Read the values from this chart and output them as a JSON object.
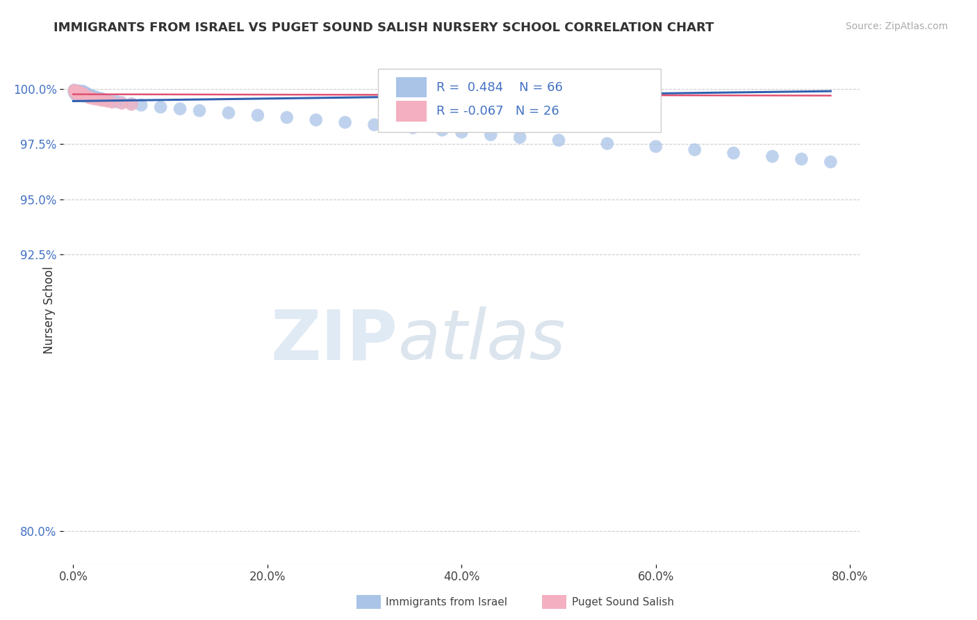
{
  "title": "IMMIGRANTS FROM ISRAEL VS PUGET SOUND SALISH NURSERY SCHOOL CORRELATION CHART",
  "source_text": "Source: ZipAtlas.com",
  "ylabel": "Nursery School",
  "x_tick_labels": [
    "0.0%",
    "20.0%",
    "40.0%",
    "60.0%",
    "80.0%"
  ],
  "x_tick_positions": [
    0.0,
    0.2,
    0.4,
    0.6,
    0.8
  ],
  "y_tick_labels": [
    "100.0%",
    "97.5%",
    "95.0%",
    "92.5%",
    "80.0%"
  ],
  "y_tick_positions": [
    1.0,
    0.975,
    0.95,
    0.925,
    0.8
  ],
  "ylim": [
    0.785,
    1.015
  ],
  "xlim": [
    -0.01,
    0.81
  ],
  "legend_label1": "Immigrants from Israel",
  "legend_label2": "Puget Sound Salish",
  "r1": 0.484,
  "n1": 66,
  "r2": -0.067,
  "n2": 26,
  "color1": "#aac4e8",
  "color2": "#f4b0c0",
  "line_color1": "#3060b0",
  "line_color2": "#e05070",
  "background_color": "#ffffff",
  "blue_dots_x": [
    0.001,
    0.001,
    0.002,
    0.002,
    0.003,
    0.003,
    0.003,
    0.004,
    0.004,
    0.005,
    0.005,
    0.005,
    0.006,
    0.006,
    0.007,
    0.007,
    0.008,
    0.008,
    0.009,
    0.009,
    0.01,
    0.01,
    0.01,
    0.011,
    0.012,
    0.013,
    0.014,
    0.015,
    0.016,
    0.017,
    0.018,
    0.019,
    0.02,
    0.022,
    0.025,
    0.028,
    0.03,
    0.032,
    0.035,
    0.04,
    0.045,
    0.05,
    0.06,
    0.07,
    0.09,
    0.11,
    0.13,
    0.16,
    0.19,
    0.22,
    0.25,
    0.28,
    0.31,
    0.35,
    0.38,
    0.4,
    0.43,
    0.46,
    0.5,
    0.55,
    0.6,
    0.64,
    0.68,
    0.72,
    0.75,
    0.78
  ],
  "blue_dots_y": [
    0.9995,
    0.9985,
    0.999,
    0.998,
    0.9992,
    0.9982,
    0.9972,
    0.9988,
    0.9978,
    0.9991,
    0.9981,
    0.9971,
    0.9987,
    0.9977,
    0.999,
    0.9975,
    0.9988,
    0.9973,
    0.9986,
    0.9971,
    0.999,
    0.998,
    0.9968,
    0.9983,
    0.9978,
    0.9975,
    0.998,
    0.9975,
    0.9972,
    0.9969,
    0.9966,
    0.9963,
    0.9968,
    0.9965,
    0.996,
    0.9957,
    0.9955,
    0.9952,
    0.9948,
    0.9945,
    0.9942,
    0.9939,
    0.9933,
    0.9927,
    0.9918,
    0.991,
    0.9902,
    0.9892,
    0.9881,
    0.9871,
    0.986,
    0.9849,
    0.9838,
    0.9825,
    0.9814,
    0.9805,
    0.9793,
    0.9781,
    0.9768,
    0.9753,
    0.974,
    0.9725,
    0.971,
    0.9695,
    0.9683,
    0.967
  ],
  "pink_dots_x": [
    0.001,
    0.002,
    0.003,
    0.003,
    0.004,
    0.005,
    0.006,
    0.007,
    0.008,
    0.009,
    0.01,
    0.011,
    0.012,
    0.013,
    0.015,
    0.017,
    0.019,
    0.022,
    0.026,
    0.03,
    0.035,
    0.04,
    0.05,
    0.06,
    0.35,
    0.55
  ],
  "pink_dots_y": [
    0.9993,
    0.9988,
    0.999,
    0.9978,
    0.9985,
    0.9982,
    0.9987,
    0.9975,
    0.998,
    0.9972,
    0.9978,
    0.9975,
    0.997,
    0.9968,
    0.9965,
    0.996,
    0.9958,
    0.9955,
    0.9952,
    0.9948,
    0.9945,
    0.994,
    0.9935,
    0.993,
    0.9993,
    0.9968
  ],
  "blue_line_x0": 0.0,
  "blue_line_x1": 0.78,
  "blue_line_y0": 0.9945,
  "blue_line_y1": 0.999,
  "pink_line_x0": 0.0,
  "pink_line_x1": 0.78,
  "pink_line_y0": 0.9976,
  "pink_line_y1": 0.997
}
